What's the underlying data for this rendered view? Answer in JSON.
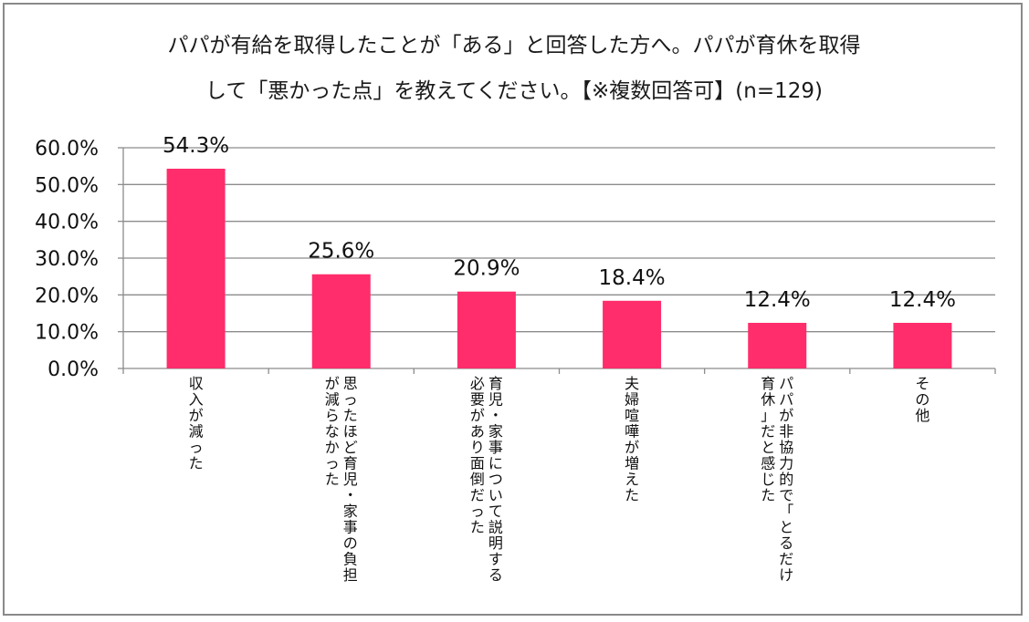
{
  "chart_data": {
    "type": "bar",
    "title_lines": [
      "パパが有給を取得したことが「ある」と回答した方へ。パパが育休を取得",
      "して「悪かった点」を教えてください。【※複数回答可】(n=129)"
    ],
    "categories": [
      [
        "収入が減った"
      ],
      [
        "思ったほど育児・家事の負担",
        "が減らなかった"
      ],
      [
        "育児・家事について説明する",
        "必要があり面倒だった"
      ],
      [
        "夫婦喧嘩が増えた"
      ],
      [
        "パパが非協力的で「とるだけ",
        "育休」だと感じた"
      ],
      [
        "その他"
      ]
    ],
    "values": [
      54.3,
      25.6,
      20.9,
      18.4,
      12.4,
      12.4
    ],
    "value_labels": [
      "54.3%",
      "25.6%",
      "20.9%",
      "18.4%",
      "12.4%",
      "12.4%"
    ],
    "yticks": [
      "0.0%",
      "10.0%",
      "20.0%",
      "30.0%",
      "40.0%",
      "50.0%",
      "60.0%"
    ],
    "ylim": [
      0,
      60
    ],
    "grid": true,
    "legend": false,
    "bar_color": "#ff2d6b",
    "grid_color": "#8c8c8c"
  }
}
